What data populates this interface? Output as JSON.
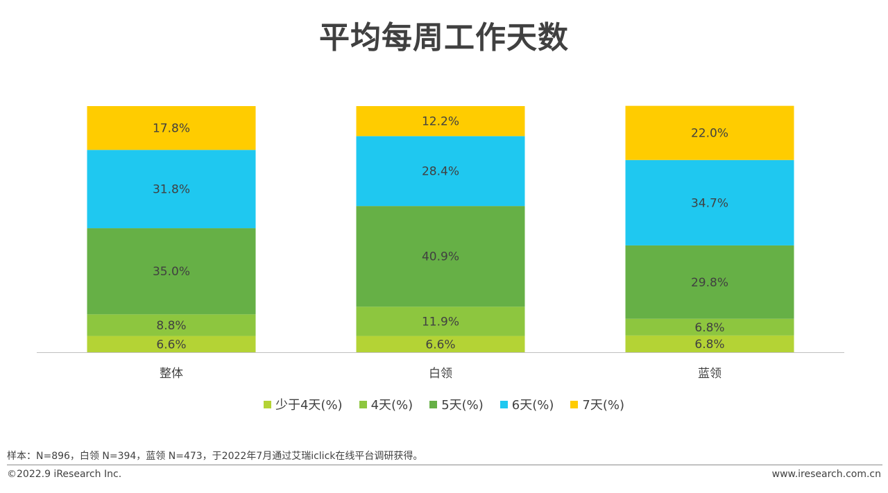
{
  "title": "平均每周工作天数",
  "chart_data": {
    "type": "bar",
    "stacked": true,
    "categories": [
      "整体",
      "白领",
      "蓝领"
    ],
    "series": [
      {
        "name": "少于4天(%)",
        "values": [
          6.6,
          6.6,
          6.8
        ],
        "color": "#B4D335",
        "label_values": [
          "6.6%",
          "6.6%",
          "6.8%"
        ]
      },
      {
        "name": "4天(%)",
        "values": [
          8.8,
          11.9,
          6.8
        ],
        "color": "#8DC63F",
        "label_values": [
          "8.8%",
          "11.9%",
          "6.8%"
        ]
      },
      {
        "name": "5天(%)",
        "values": [
          35.0,
          40.9,
          29.8
        ],
        "color": "#66B046",
        "label_values": [
          "35.0%",
          "40.9%",
          "29.8%"
        ]
      },
      {
        "name": "6天(%)",
        "values": [
          31.8,
          28.4,
          34.7
        ],
        "color": "#1FC8F0",
        "label_values": [
          "31.8%",
          "28.4%",
          "34.7%"
        ]
      },
      {
        "name": "7天(%)",
        "values": [
          17.8,
          12.2,
          22.0
        ],
        "color": "#FFCC00",
        "label_values": [
          "17.8%",
          "12.2%",
          "22.0%"
        ]
      }
    ],
    "ylim": [
      0,
      100
    ],
    "grid": false,
    "legend": "bottom"
  },
  "note": "样本：N=896，白领 N=394，蓝领 N=473，于2022年7月通过艾瑞iclick在线平台调研获得。",
  "footer": {
    "copyright": "©2022.9 iResearch Inc.",
    "website": "www.iresearch.com.cn"
  }
}
